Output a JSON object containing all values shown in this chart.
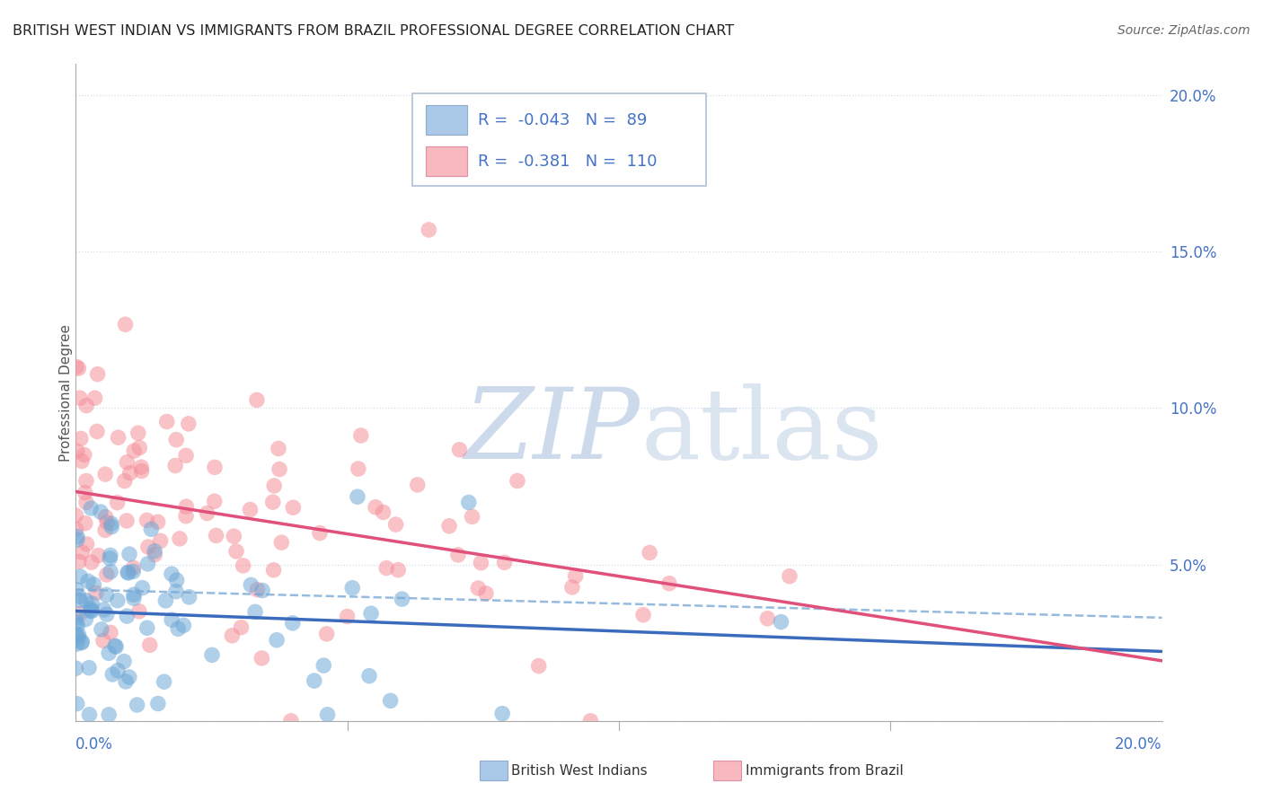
{
  "title": "BRITISH WEST INDIAN VS IMMIGRANTS FROM BRAZIL PROFESSIONAL DEGREE CORRELATION CHART",
  "source": "Source: ZipAtlas.com",
  "ylabel": "Professional Degree",
  "xlim": [
    0.0,
    0.2
  ],
  "ylim": [
    0.0,
    0.21
  ],
  "yticks": [
    0.0,
    0.05,
    0.1,
    0.15,
    0.2
  ],
  "ytick_labels": [
    "",
    "5.0%",
    "10.0%",
    "15.0%",
    "20.0%"
  ],
  "legend": {
    "blue_R": "-0.043",
    "blue_N": "89",
    "pink_R": "-0.381",
    "pink_N": "110"
  },
  "blue_scatter_color": "#6fa8d6",
  "blue_line_color": "#3a6bbd",
  "blue_dash_color": "#7baad6",
  "pink_scatter_color": "#f4909a",
  "pink_line_color": "#e0507a",
  "legend_text_color": "#4472c4",
  "watermark_color": "#cddaeb",
  "background_color": "#ffffff",
  "grid_color": "#d0d8e8",
  "title_color": "#222222",
  "source_color": "#666666",
  "axis_color": "#aaaaaa",
  "xlabel_color": "#4472c4",
  "ylabel_color": "#555555"
}
